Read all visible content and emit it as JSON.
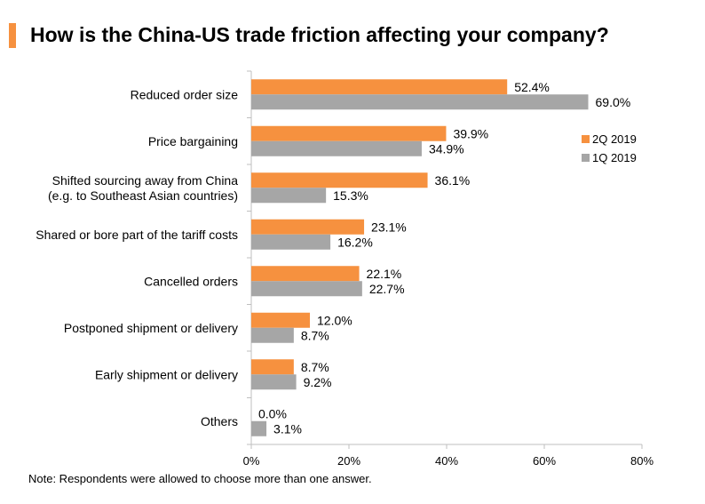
{
  "title": "How is the China-US trade friction affecting your company?",
  "note": "Note: Respondents were allowed to choose more than one answer.",
  "colors": {
    "accent": "#f6913f",
    "series_2q": "#f6913f",
    "series_1q": "#a6a6a6"
  },
  "chart_data": {
    "type": "bar",
    "orientation": "horizontal",
    "title": "How is the China-US trade friction affecting your company?",
    "categories": [
      [
        "Reduced order size"
      ],
      [
        "Price bargaining"
      ],
      [
        "Shifted sourcing away from China",
        "(e.g. to Southeast Asian countries)"
      ],
      [
        "Shared or bore part of the tariff costs"
      ],
      [
        "Cancelled orders"
      ],
      [
        "Postponed shipment or delivery"
      ],
      [
        "Early shipment or delivery"
      ],
      [
        "Others"
      ]
    ],
    "series": [
      {
        "name": "2Q 2019",
        "color": "#f6913f",
        "values": [
          52.4,
          39.9,
          36.1,
          23.1,
          22.1,
          12.0,
          8.7,
          0.0
        ]
      },
      {
        "name": "1Q 2019",
        "color": "#a6a6a6",
        "values": [
          69.0,
          34.9,
          15.3,
          16.2,
          22.7,
          8.7,
          9.2,
          3.1
        ]
      }
    ],
    "xlim": [
      0,
      80
    ],
    "xticks": [
      0,
      20,
      40,
      60,
      80
    ],
    "tick_suffix": "%",
    "value_suffix": "%",
    "legend_position": "right",
    "xlabel": "",
    "ylabel": ""
  }
}
